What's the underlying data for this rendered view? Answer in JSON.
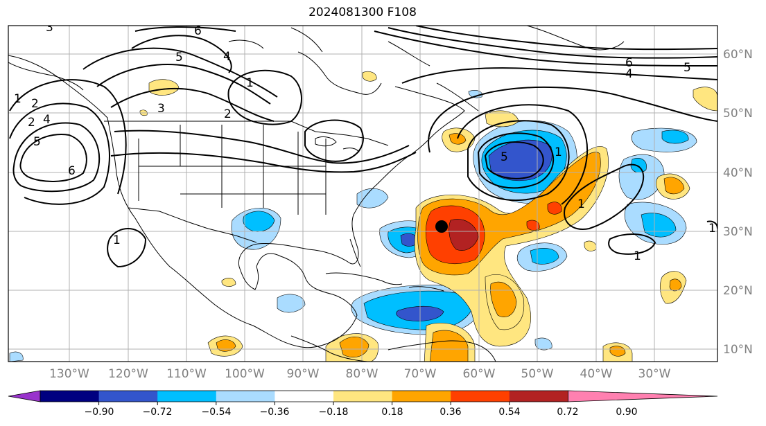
{
  "title": "2024081300 F108",
  "map": {
    "lon_labels": [
      "130°W",
      "120°W",
      "110°W",
      "100°W",
      "90°W",
      "80°W",
      "70°W",
      "60°W",
      "50°W",
      "40°W",
      "30°W"
    ],
    "lat_labels": [
      "60°N",
      "50°N",
      "40°N",
      "30°N",
      "20°N",
      "10°N"
    ],
    "contour_labels": [
      "3",
      "6",
      "5",
      "4",
      "1",
      "2",
      "3",
      "2",
      "1",
      "4",
      "6",
      "1",
      "5",
      "6",
      "4",
      "5",
      "1",
      "1",
      "1",
      "1",
      "2",
      "5"
    ],
    "storm_marker": "black-dot"
  },
  "colorbar": {
    "ticks": [
      "−0.90",
      "−0.72",
      "−0.54",
      "−0.36",
      "−0.18",
      "0.18",
      "0.36",
      "0.54",
      "0.72",
      "0.90"
    ],
    "colors": [
      "#9933cc",
      "#000080",
      "#3355cc",
      "#00bfff",
      "#aadcff",
      "#ffffff",
      "#ffe680",
      "#ffa500",
      "#ff4000",
      "#b22222",
      "#ff80b0"
    ]
  },
  "colors": {
    "grid": "#b0b0b0",
    "coast": "#000000",
    "contour": "#000000"
  }
}
